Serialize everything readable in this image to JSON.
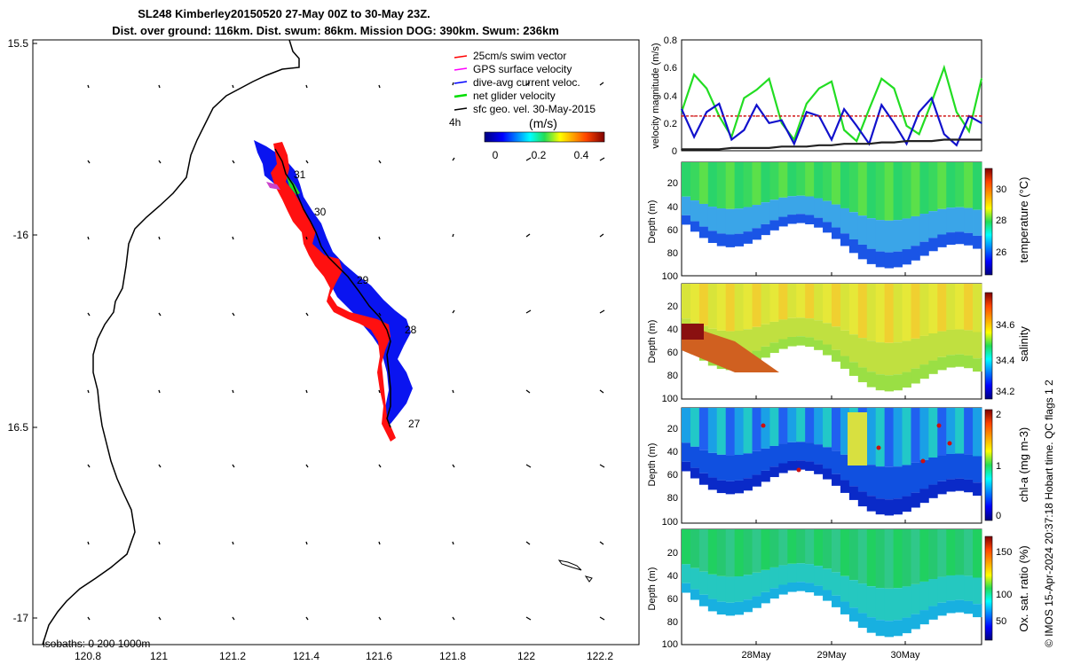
{
  "title": {
    "line1": "SL248 Kimberley20150520 27-May 00Z to 30-May 23Z.",
    "line2": "Dist. over ground: 116km. Dist. swum: 86km. Mission DOG: 390km. Swum: 236km"
  },
  "map": {
    "lon_ticks": [
      "120.8",
      "121",
      "121.2",
      "121.4",
      "121.6",
      "121.8",
      "122",
      "122.2"
    ],
    "lat_ticks": [
      "15.5",
      "-16",
      "16.5",
      "-17"
    ],
    "day_labels": [
      "31",
      "30",
      "29",
      "28",
      "27"
    ],
    "legend": [
      {
        "label": "25cm/s swim vector",
        "color": "#ff0000"
      },
      {
        "label": "GPS surface velocity",
        "color": "#ff00ff"
      },
      {
        "label": "dive-avg current veloc.",
        "color": "#0000ff"
      },
      {
        "label": "net glider velocity",
        "color": "#00dd00"
      },
      {
        "label": "sfc geo. vel. 30-May-2015",
        "color": "#000000"
      }
    ],
    "legend_extra": "4h",
    "colorbar_title": "(m/s)",
    "colorbar_ticks": [
      "0",
      "0.2",
      "0.4"
    ],
    "isobaths": "isobaths: 0   200  1000m"
  },
  "chart_data": [
    {
      "type": "line",
      "title": "",
      "ylabel": "velocity magnitude (m/s)",
      "ylim": [
        0,
        0.8
      ],
      "yticks": [
        "0",
        "0.2",
        "0.4",
        "0.6",
        "0.8"
      ],
      "x": [
        0,
        4,
        8,
        12,
        16,
        20,
        24,
        28,
        32,
        36,
        40,
        44,
        48,
        52,
        56,
        60,
        64,
        68,
        72,
        76,
        80,
        84,
        88,
        92,
        96
      ],
      "series": [
        {
          "name": "net glider velocity",
          "color": "#22dd22",
          "values": [
            0.28,
            0.55,
            0.45,
            0.25,
            0.1,
            0.38,
            0.44,
            0.52,
            0.2,
            0.08,
            0.34,
            0.45,
            0.5,
            0.15,
            0.07,
            0.3,
            0.52,
            0.45,
            0.18,
            0.12,
            0.35,
            0.6,
            0.28,
            0.14,
            0.52
          ]
        },
        {
          "name": "dive-avg current veloc.",
          "color": "#1111cc",
          "values": [
            0.3,
            0.1,
            0.28,
            0.34,
            0.08,
            0.15,
            0.33,
            0.2,
            0.22,
            0.05,
            0.28,
            0.25,
            0.08,
            0.3,
            0.18,
            0.05,
            0.33,
            0.2,
            0.05,
            0.28,
            0.38,
            0.12,
            0.04,
            0.25,
            0.2
          ]
        },
        {
          "name": "swim reference",
          "color": "#cc0000",
          "values": [
            0.25,
            0.25,
            0.25,
            0.25,
            0.25,
            0.25,
            0.25,
            0.25,
            0.25,
            0.25,
            0.25,
            0.25,
            0.25,
            0.25,
            0.25,
            0.25,
            0.25,
            0.25,
            0.25,
            0.25,
            0.25,
            0.25,
            0.25,
            0.25,
            0.25
          ]
        },
        {
          "name": "surface geo. vel.",
          "color": "#222222",
          "values": [
            0.01,
            0.01,
            0.01,
            0.01,
            0.02,
            0.02,
            0.02,
            0.02,
            0.03,
            0.03,
            0.03,
            0.04,
            0.04,
            0.05,
            0.05,
            0.05,
            0.06,
            0.06,
            0.07,
            0.07,
            0.07,
            0.08,
            0.08,
            0.08,
            0.08
          ]
        }
      ]
    },
    {
      "type": "heatmap",
      "ylabel": "Depth (m)",
      "yticks": [
        "20",
        "40",
        "60",
        "80",
        "100"
      ],
      "colorbar_label": "temperature (°C)",
      "colorbar_ticks": [
        "30",
        "28",
        "26"
      ],
      "clim": [
        25,
        31
      ]
    },
    {
      "type": "heatmap",
      "ylabel": "Depth (m)",
      "yticks": [
        "20",
        "40",
        "60",
        "80",
        "100"
      ],
      "colorbar_label": "salinity",
      "colorbar_ticks": [
        "34.6",
        "34.4",
        "34.2"
      ],
      "clim": [
        34.15,
        34.75
      ]
    },
    {
      "type": "heatmap",
      "ylabel": "Depth (m)",
      "yticks": [
        "20",
        "40",
        "60",
        "80",
        "100"
      ],
      "colorbar_label": "chl-a (mg m-3)",
      "colorbar_ticks": [
        "2",
        "1",
        "0"
      ],
      "clim": [
        0,
        2
      ]
    },
    {
      "type": "heatmap",
      "ylabel": "Depth (m)",
      "yticks": [
        "20",
        "40",
        "60",
        "80",
        "100"
      ],
      "colorbar_label": "Ox. sat. ratio (%)",
      "colorbar_ticks": [
        "150",
        "100",
        "50"
      ],
      "clim": [
        20,
        175
      ]
    }
  ],
  "time_axis": {
    "ticks": [
      "28May",
      "29May",
      "30May"
    ]
  },
  "credit": "© IMOS 15-Apr-2024 20:37:18 Hobart time. QC flags 1  2"
}
